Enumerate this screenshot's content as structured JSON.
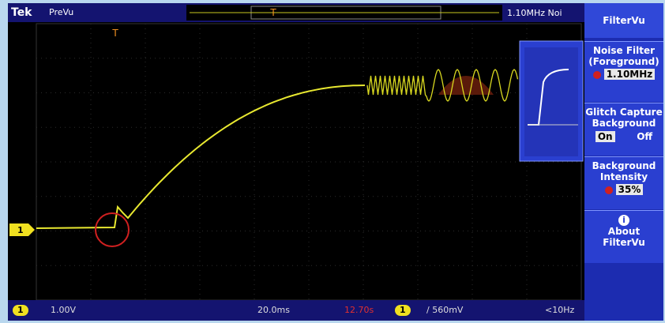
{
  "header": {
    "brand": "Tek",
    "mode": "PreVu",
    "status": "1.10MHz Noi"
  },
  "channel_marker": "1",
  "trigger_marker": "T",
  "side_menu": {
    "title": "FilterVu",
    "noise_filter": {
      "label_lines": [
        "Noise Filter",
        "(Foreground)"
      ],
      "value": "1.10MHz"
    },
    "glitch_capture": {
      "label_lines": [
        "Glitch Capture",
        "Background"
      ],
      "on": "On",
      "off": "Off"
    },
    "background_intensity": {
      "label_lines": [
        "Background",
        "Intensity"
      ],
      "value": "35%"
    },
    "about": {
      "icon": "i",
      "label_lines": [
        "About",
        "FilterVu"
      ]
    }
  },
  "footer": {
    "channel": "1",
    "scale": "1.00V",
    "timebase": "20.0ms",
    "position": "12.70s",
    "trigger_channel": "1",
    "trigger_level": "/ 560mV",
    "frequency": "<10Hz"
  }
}
